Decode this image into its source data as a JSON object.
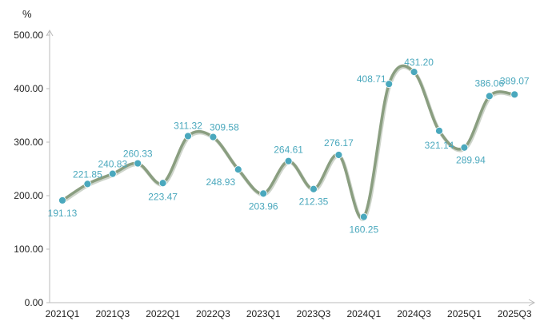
{
  "chart_data": {
    "type": "line",
    "title": "",
    "xlabel": "",
    "ylabel": "%",
    "ylim": [
      0,
      500
    ],
    "y_ticks": [
      "0.00",
      "100.00",
      "200.00",
      "300.00",
      "400.00",
      "500.00"
    ],
    "x_tick_labels": [
      "2021Q1",
      "2021Q3",
      "2022Q1",
      "2022Q3",
      "2023Q1",
      "2023Q3",
      "2024Q1",
      "2024Q3",
      "2025Q1",
      "2025Q3"
    ],
    "categories": [
      "2021Q1",
      "2021Q2",
      "2021Q3",
      "2021Q4",
      "2022Q1",
      "2022Q2",
      "2022Q3",
      "2022Q4",
      "2023Q1",
      "2023Q2",
      "2023Q3",
      "2023Q4",
      "2024Q1",
      "2024Q2",
      "2024Q3",
      "2024Q4",
      "2025Q1",
      "2025Q2",
      "2025Q3"
    ],
    "values": [
      191.13,
      221.85,
      240.83,
      260.33,
      223.47,
      311.32,
      309.58,
      248.93,
      203.96,
      264.61,
      212.35,
      276.17,
      160.25,
      408.71,
      431.2,
      321.14,
      289.94,
      386.06,
      389.07
    ],
    "data_labels": [
      "191.13",
      "221.85",
      "240.83",
      "260.33",
      "223.47",
      "311.32",
      "309.58",
      "248.93",
      "203.96",
      "264.61",
      "212.35",
      "276.17",
      "160.25",
      "408.71",
      "431.20",
      "321.14",
      "289.94",
      "386.06",
      "389.07"
    ],
    "colors": {
      "line": "#8a9e80",
      "marker": "#4aa8bd",
      "label": "#4aa8bd",
      "axis": "#bbbbbb"
    },
    "grid": false,
    "smooth": true
  }
}
